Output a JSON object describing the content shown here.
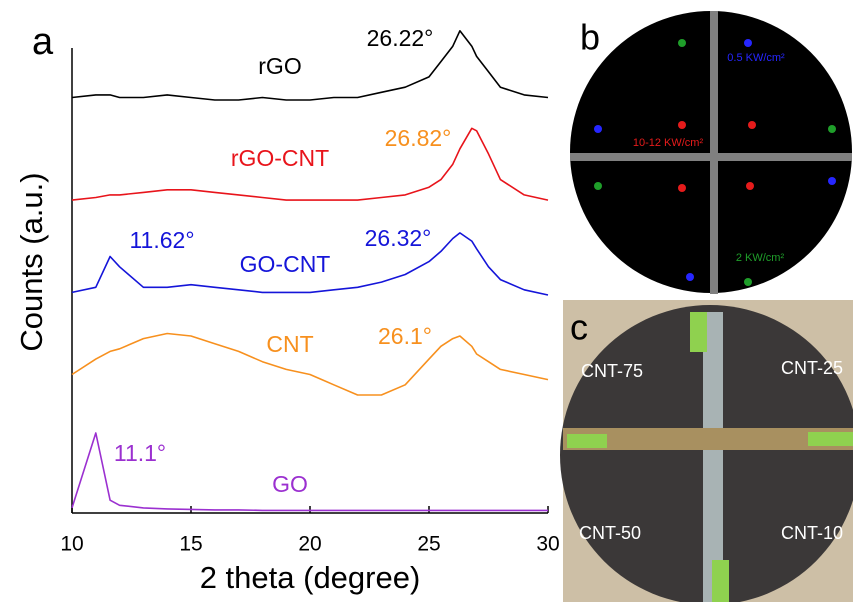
{
  "chart_data": {
    "type": "line",
    "panel": "a",
    "xlabel": "2 theta (degree)",
    "ylabel": "Counts (a.u.)",
    "xlim": [
      10,
      30
    ],
    "xticks": [
      10,
      15,
      20,
      25,
      30
    ],
    "ylim": [
      0,
      100
    ],
    "x": [
      10,
      11,
      11.6,
      12,
      13,
      14,
      15,
      16,
      17,
      18,
      19,
      20,
      21,
      22,
      23,
      24,
      25,
      25.5,
      26,
      26.3,
      26.8,
      27,
      27.5,
      28,
      29,
      30
    ],
    "series": [
      {
        "name": "rGO",
        "color": "#000000",
        "values": [
          81,
          81.5,
          81.5,
          81,
          81,
          81.5,
          81,
          80.5,
          80.5,
          81,
          80.5,
          80.5,
          81,
          81,
          82,
          83,
          85,
          88,
          91,
          94,
          91,
          89,
          86,
          83,
          81.5,
          81
        ]
      },
      {
        "name": "rGO-CNT",
        "color": "#e8141b",
        "values": [
          61,
          61.5,
          62,
          62,
          62.5,
          63,
          63,
          62.5,
          62,
          61.5,
          61,
          61,
          61,
          61,
          61.5,
          62,
          63.5,
          65,
          68,
          71,
          75,
          74.5,
          70,
          65,
          62,
          61
        ]
      },
      {
        "name": "GO-CNT",
        "color": "#1515d9",
        "values": [
          43,
          44,
          50,
          48,
          44,
          44,
          44.5,
          44,
          43.5,
          43,
          43,
          43,
          43.5,
          44,
          45,
          46.5,
          49,
          51,
          53.5,
          54.6,
          53,
          51.5,
          48,
          45.5,
          43.5,
          42.5
        ]
      },
      {
        "name": "CNT",
        "color": "#f7901e",
        "values": [
          27,
          30,
          31.5,
          32,
          34,
          35,
          34.5,
          33,
          31.5,
          29.5,
          28,
          27,
          25,
          23,
          23,
          25,
          30,
          32.5,
          34,
          34.5,
          32.5,
          31,
          29.5,
          28,
          27,
          26
        ]
      },
      {
        "name": "GO",
        "color": "#9b30d0",
        "values": [
          1,
          15.6,
          2.5,
          1.5,
          1,
          0.8,
          0.7,
          0.6,
          0.6,
          0.5,
          0.5,
          0.5,
          0.5,
          0.5,
          0.5,
          0.5,
          0.5,
          0.5,
          0.5,
          0.5,
          0.5,
          0.5,
          0.5,
          0.5,
          0.5,
          0.5
        ]
      }
    ],
    "annotations": [
      {
        "text": "26.22°",
        "color": "#000000"
      },
      {
        "text": "26.82°",
        "color": "#f7901e"
      },
      {
        "text": "11.62°",
        "color": "#1515d9"
      },
      {
        "text": "26.32°",
        "color": "#1515d9"
      },
      {
        "text": "26.1°",
        "color": "#f7901e"
      },
      {
        "text": "11.1°",
        "color": "#9b30d0"
      }
    ]
  },
  "panel_b": {
    "label": "b",
    "power_labels": [
      {
        "text": "0.5 KW/cm²",
        "color": "#2626ff"
      },
      {
        "text": "10-12 KW/cm²",
        "color": "#e51b1b"
      },
      {
        "text": "2 KW/cm²",
        "color": "#1f9e2a"
      }
    ]
  },
  "panel_c": {
    "label": "c",
    "samples": [
      "CNT-75",
      "CNT-25",
      "CNT-50",
      "CNT-10"
    ]
  }
}
